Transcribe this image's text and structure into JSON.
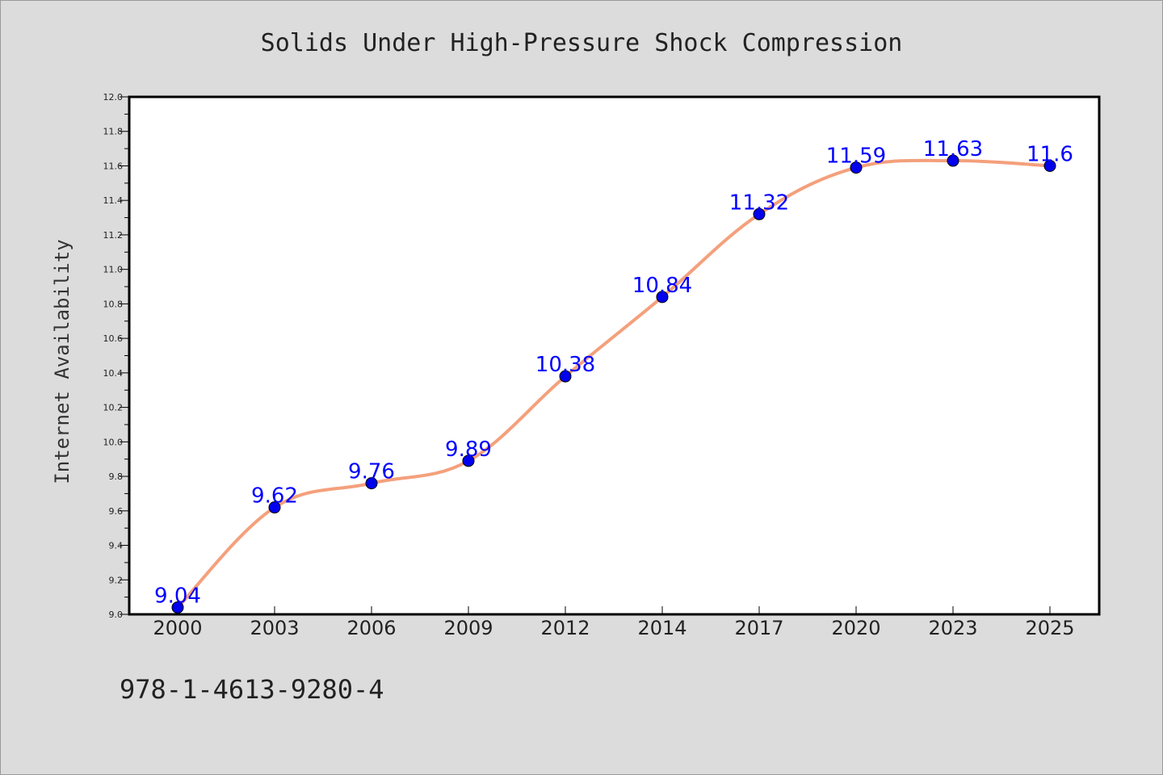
{
  "chart_data": {
    "type": "line",
    "title": "Solids Under High-Pressure Shock Compression",
    "xlabel": "",
    "ylabel": "Internet Availability",
    "categories": [
      "2000",
      "2003",
      "2006",
      "2009",
      "2012",
      "2014",
      "2017",
      "2020",
      "2023",
      "2025"
    ],
    "series": [
      {
        "values": [
          9.04,
          9.62,
          9.76,
          9.89,
          10.38,
          10.84,
          11.32,
          11.59,
          11.63,
          11.6
        ],
        "data_labels": [
          "9.04",
          "9.62",
          "9.76",
          "9.89",
          "10.38",
          "10.84",
          "11.32",
          "11.59",
          "11.63",
          "11.6"
        ],
        "line_color": "#f4a07c",
        "marker_color": "#0000ee"
      }
    ],
    "ylim": [
      9.0,
      12.0
    ],
    "yticks": [
      "9.0",
      "9.2",
      "9.4",
      "9.6",
      "9.8",
      "10.0",
      "10.2",
      "10.4",
      "10.6",
      "10.8",
      "11.0",
      "11.2",
      "11.4",
      "11.6",
      "11.8",
      "12.0"
    ],
    "grid": false,
    "legend": "none",
    "label_color": "#0000ff"
  },
  "footer_note": "978-1-4613-9280-4",
  "colors": {
    "background": "#dcdcdc",
    "plot_area": "#ffffff",
    "axis": "#000000"
  }
}
